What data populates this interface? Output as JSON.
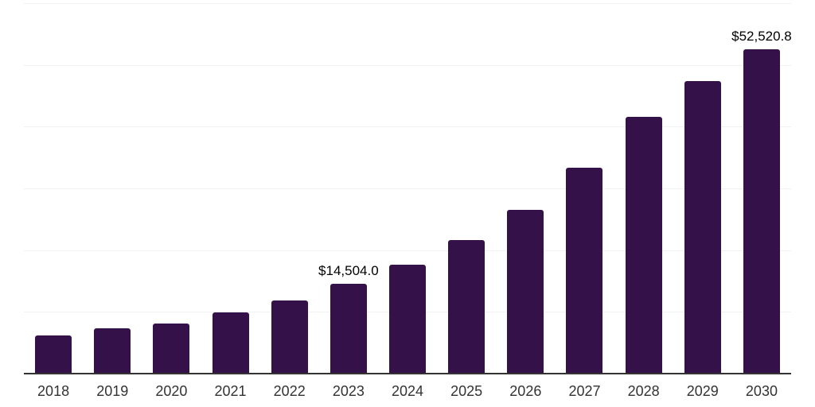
{
  "chart_data": {
    "type": "bar",
    "title": "",
    "xlabel": "",
    "ylabel": "",
    "categories": [
      "2018",
      "2019",
      "2020",
      "2021",
      "2022",
      "2023",
      "2024",
      "2025",
      "2026",
      "2027",
      "2028",
      "2029",
      "2030"
    ],
    "values": [
      6130,
      7290,
      8050,
      9970,
      11890,
      14504.0,
      17640,
      21600,
      26580,
      33360,
      41530,
      47410,
      52520.8
    ],
    "point_labels": [
      "",
      "",
      "",
      "",
      "",
      "$14,504.0",
      "",
      "",
      "",
      "",
      "",
      "",
      "$52,520.8"
    ],
    "ylim": [
      0,
      60000
    ],
    "gridline_interval": 10000,
    "gridline_values": [
      60000,
      50000,
      40000,
      30000,
      20000,
      10000
    ],
    "grid": "horizontal",
    "legend_position": "none",
    "colors": {
      "bar": "#35114A",
      "axis": "#333333",
      "gridline": "#f2f2f2",
      "tick_label": "#333333",
      "data_label": "#000000",
      "background": "#ffffff"
    }
  }
}
